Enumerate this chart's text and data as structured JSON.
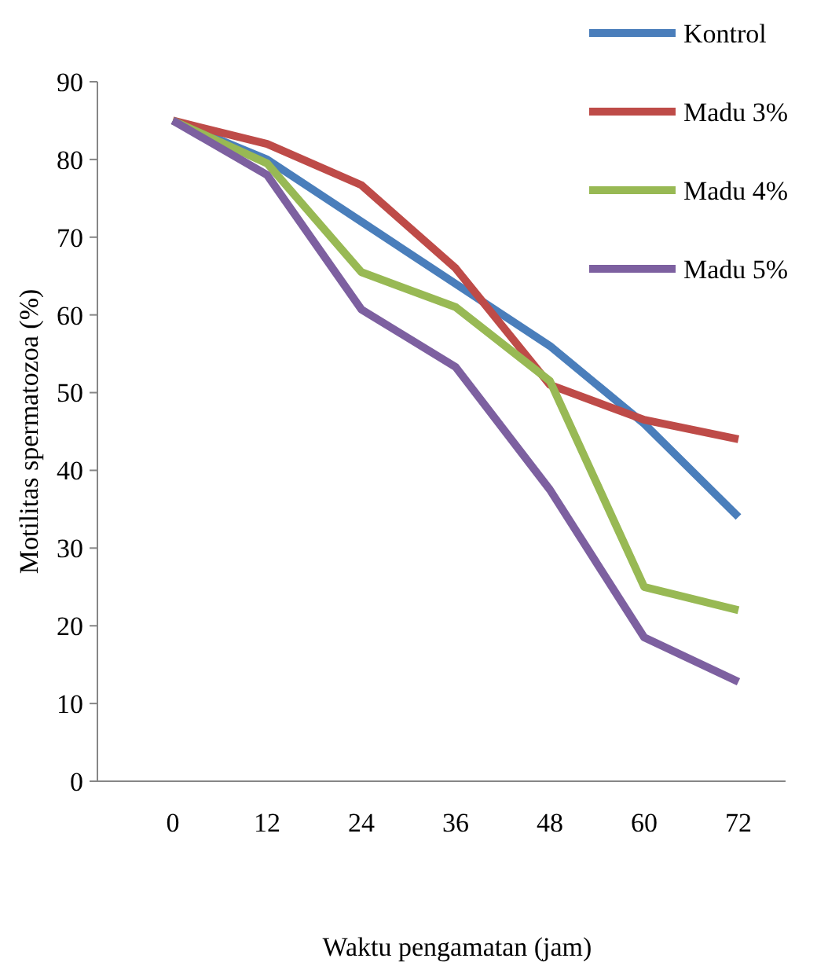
{
  "chart_data": {
    "type": "line",
    "xlabel": "Waktu pengamatan (jam)",
    "ylabel": "Motilitas spermatozoa (%)",
    "categories": [
      "0",
      "12",
      "24",
      "36",
      "48",
      "60",
      "72"
    ],
    "ylim": [
      0,
      90
    ],
    "yticks": [
      0,
      10,
      20,
      30,
      40,
      50,
      60,
      70,
      80,
      90
    ],
    "grid": false,
    "legend": "top right",
    "marker": "none",
    "line_style": "solid",
    "series": [
      {
        "name": "Kontrol",
        "color": "#4a7ebb",
        "values": [
          85,
          80,
          72,
          64,
          56,
          46,
          34
        ]
      },
      {
        "name": "Madu 3%",
        "color": "#be4b48",
        "values": [
          85,
          82,
          76.7,
          66,
          51,
          46.5,
          44
        ]
      },
      {
        "name": "Madu 4%",
        "color": "#98b954",
        "values": [
          85,
          79.5,
          65.5,
          61,
          51.5,
          25,
          22
        ]
      },
      {
        "name": "Madu 5%",
        "color": "#7d60a0",
        "values": [
          85,
          78,
          60.7,
          53.3,
          37.5,
          18.5,
          12.8
        ]
      }
    ]
  }
}
